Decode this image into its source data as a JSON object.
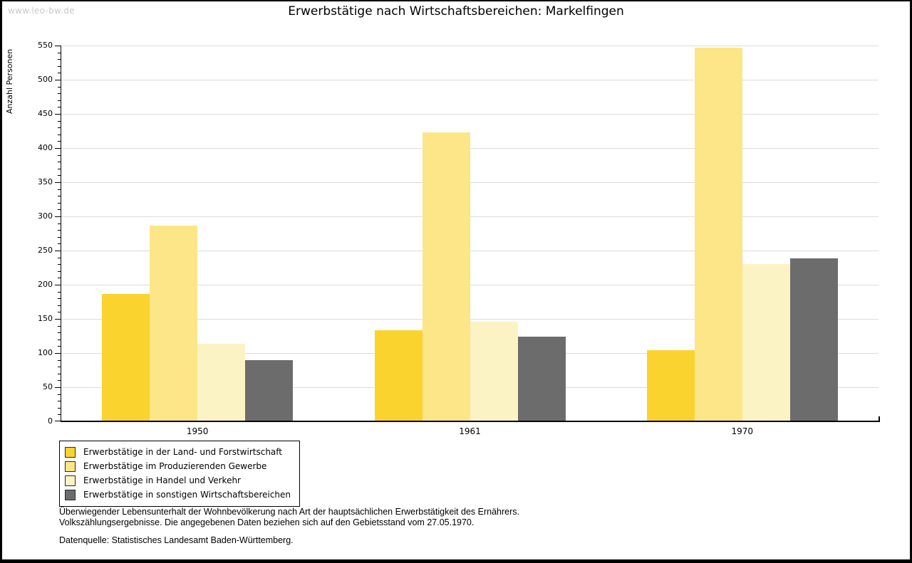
{
  "watermark": "www.leo-bw.de",
  "title": "Erwerbstätige nach Wirtschaftsbereichen: Markelfingen",
  "chart_data": {
    "type": "bar",
    "title": "Erwerbstätige nach Wirtschaftsbereichen: Markelfingen",
    "xlabel": "",
    "ylabel": "Anzahl Personen",
    "ylim": [
      0,
      550
    ],
    "ytick_step": 50,
    "minor_tick_step": 10,
    "grid": true,
    "legend_position": "bottom-left",
    "categories": [
      "1950",
      "1961",
      "1970"
    ],
    "series": [
      {
        "name": "Erwerbstätige in der Land- und Forstwirtschaft",
        "color": "#fbd32f",
        "values": [
          187,
          133,
          104
        ]
      },
      {
        "name": "Erwerbstätige im Produzierenden Gewerbe",
        "color": "#fce687",
        "values": [
          287,
          423,
          547
        ]
      },
      {
        "name": "Erwerbstätige in Handel und Verkehr",
        "color": "#fcf3c5",
        "values": [
          114,
          146,
          230
        ]
      },
      {
        "name": "Erwerbstätige in sonstigen Wirtschaftsbereichen",
        "color": "#6c6c6c",
        "values": [
          90,
          124,
          239
        ]
      }
    ]
  },
  "footnotes": {
    "line1": "Überwiegender Lebensunterhalt der Wohnbevölkerung nach Art der hauptsächlichen Erwerbstätigkeit des Ernährers.",
    "line2": "Volkszählungsergebnisse. Die angegebenen Daten beziehen sich auf den Gebietsstand vom 27.05.1970.",
    "source": "Datenquelle: Statistisches Landesamt Baden-Württemberg."
  }
}
